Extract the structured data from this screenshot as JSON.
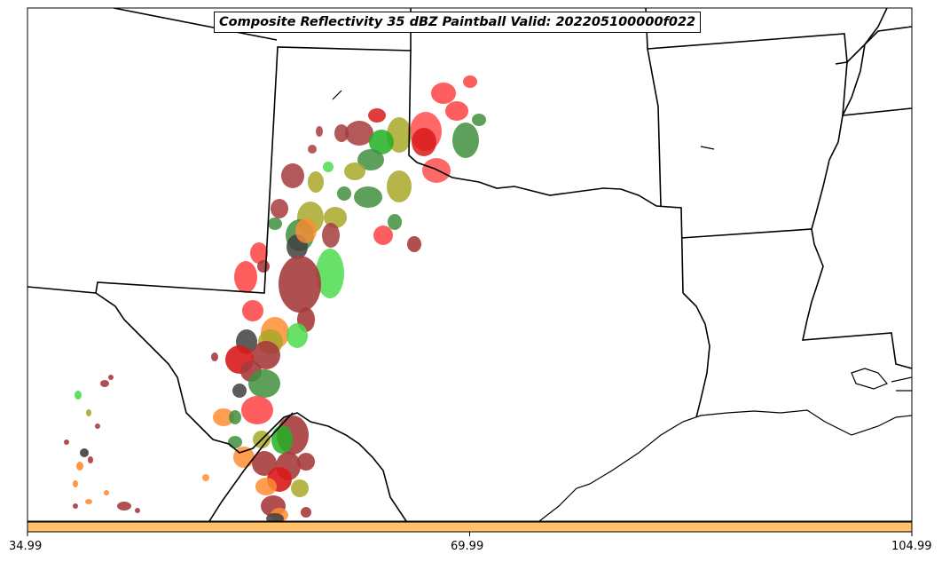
{
  "title": "Composite Reflectivity 35 dBZ Paintball Valid: 202205100000f022",
  "colorbar": {
    "color": "#ffc266",
    "tick_labels": [
      "34.99",
      "69.99",
      "104.99"
    ]
  },
  "colors": {
    "paint_red": "#ff4d4d",
    "paint_dark_red": "#d91a1a",
    "paint_brown": "#a63c3c",
    "paint_olive": "#a8a82a",
    "paint_green_dark": "#3f8f3f",
    "paint_green_light": "#4ddc4d",
    "paint_green": "#22b022",
    "paint_orange": "#ff8c33",
    "paint_gray": "#404040",
    "border_color": "#000000"
  }
}
